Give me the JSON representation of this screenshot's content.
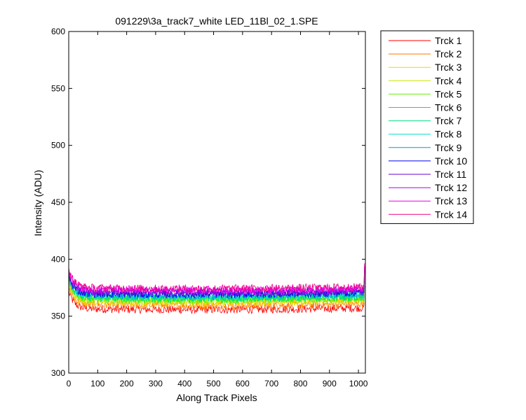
{
  "chart_data": {
    "type": "line",
    "title": "091229\\3a_track7_white LED_11Bl_02_1.SPE",
    "xlabel": "Along Track Pixels",
    "ylabel": "Intensity (ADU)",
    "xlim": [
      0,
      1024
    ],
    "ylim": [
      300,
      600
    ],
    "xticks": [
      0,
      100,
      200,
      300,
      400,
      500,
      600,
      700,
      800,
      900,
      1000
    ],
    "yticks": [
      300,
      350,
      400,
      450,
      500,
      550,
      600
    ],
    "grid": false,
    "legend_position": "outside-top-right",
    "series": [
      {
        "name": "Trck 1",
        "color": "#ff0000",
        "level": 356.5,
        "start": 372
      },
      {
        "name": "Trck 2",
        "color": "#ff7700",
        "level": 360.0,
        "start": 376
      },
      {
        "name": "Trck 3",
        "color": "#ffcc00",
        "level": 362.5,
        "start": 378
      },
      {
        "name": "Trck 4",
        "color": "#cce600",
        "level": 364.0,
        "start": 380
      },
      {
        "name": "Trck 5",
        "color": "#66ee00",
        "level": 365.0,
        "start": 381
      },
      {
        "name": "Trck 6",
        "color": "#00ee44",
        "level": 366.0,
        "start": 382
      },
      {
        "name": "Trck 7",
        "color": "#00dd88",
        "level": 367.0,
        "start": 383
      },
      {
        "name": "Trck 8",
        "color": "#00ddcc",
        "level": 368.0,
        "start": 384
      },
      {
        "name": "Trck 9",
        "color": "#0099dd",
        "level": 369.0,
        "start": 385
      },
      {
        "name": "Trck 10",
        "color": "#0000ee",
        "level": 370.0,
        "start": 386
      },
      {
        "name": "Trck 11",
        "color": "#6600cc",
        "level": 371.5,
        "start": 388
      },
      {
        "name": "Trck 12",
        "color": "#aa00ee",
        "level": 372.5,
        "start": 389
      },
      {
        "name": "Trck 13",
        "color": "#ee00ee",
        "level": 374.0,
        "start": 390
      },
      {
        "name": "Trck 14",
        "color": "#ee0088",
        "level": 375.0,
        "start": 392
      }
    ]
  }
}
